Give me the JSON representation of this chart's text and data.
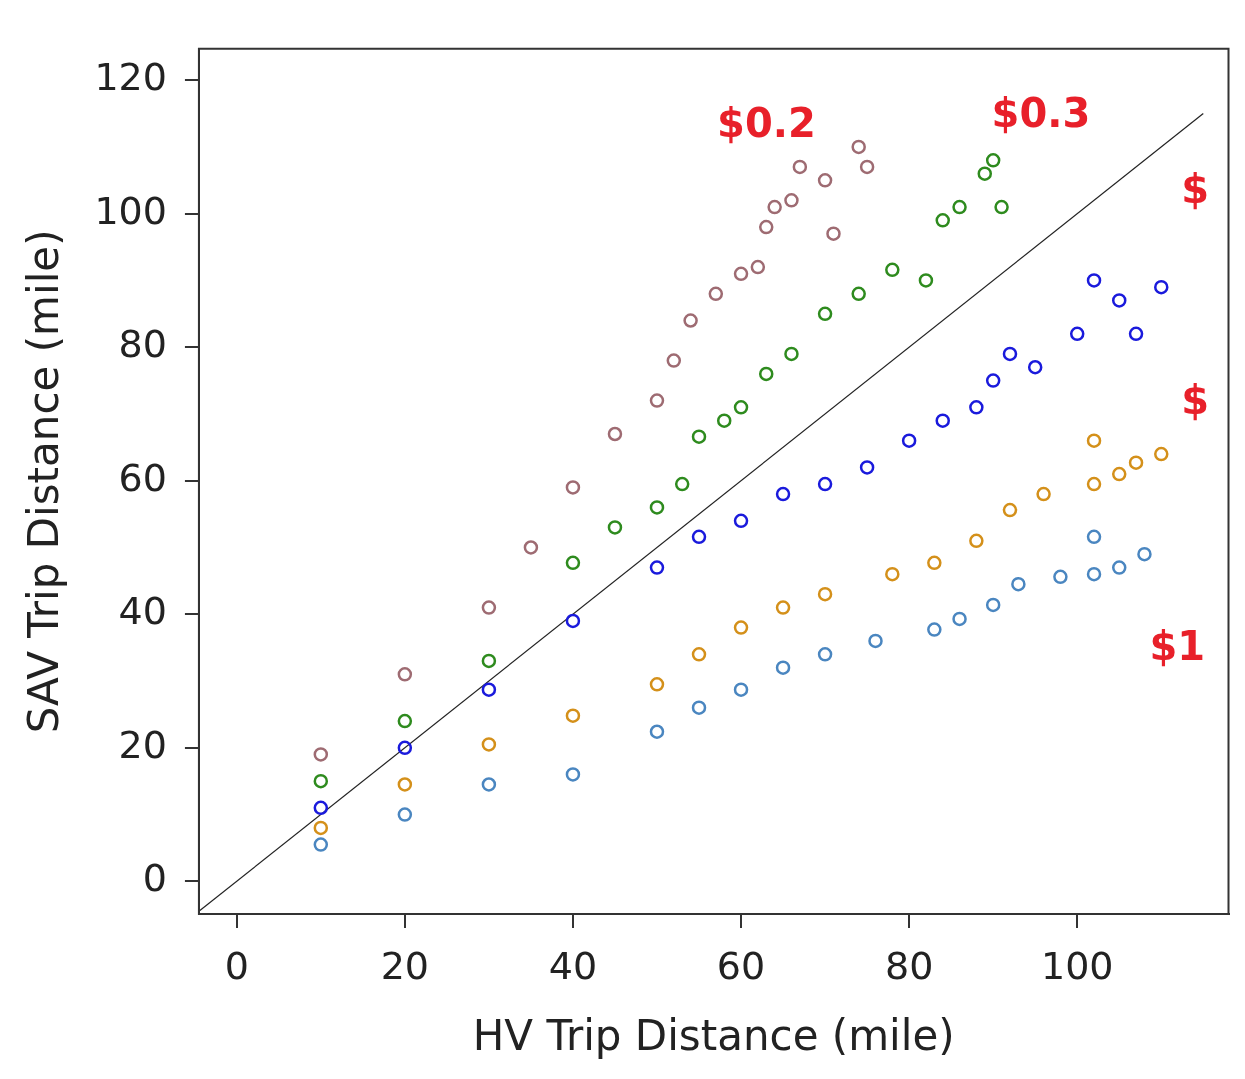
{
  "chart_data": {
    "type": "scatter",
    "xlabel": "HV Trip Distance (mile)",
    "ylabel": "SAV Trip Distance (mile)",
    "xlim": [
      -4.5,
      118
    ],
    "ylim": [
      -4.9,
      124.7
    ],
    "xticks": [
      0,
      20,
      40,
      60,
      80,
      100
    ],
    "yticks": [
      0,
      20,
      40,
      60,
      80,
      100,
      120
    ],
    "grid": false,
    "legend": false,
    "marker": "circle",
    "series": [
      {
        "name": "$0.2",
        "color": "#9e6b72",
        "x": [
          10,
          20,
          30,
          35,
          40,
          45,
          50,
          52,
          54,
          57,
          60,
          62,
          63,
          64,
          66,
          67,
          70,
          71,
          74,
          75
        ],
        "values": [
          19,
          31,
          41,
          50,
          59,
          67,
          72,
          78,
          84,
          88,
          91,
          92,
          98,
          101,
          102,
          107,
          105,
          97,
          110,
          107
        ]
      },
      {
        "name": "$0.3",
        "color": "#2e8b1e",
        "x": [
          10,
          20,
          30,
          40,
          45,
          50,
          53,
          55,
          58,
          60,
          63,
          66,
          70,
          74,
          78,
          82,
          84,
          86,
          89,
          90,
          91
        ],
        "values": [
          15,
          24,
          33,
          47.7,
          53,
          56,
          59.5,
          66.6,
          69,
          71,
          76,
          79,
          85,
          88,
          91.6,
          90,
          99,
          101,
          106,
          108,
          101
        ]
      },
      {
        "name": "$",
        "color": "#1a1adc",
        "x": [
          10,
          20,
          30,
          40,
          50,
          55,
          60,
          65,
          70,
          75,
          80,
          84,
          88,
          90,
          92,
          95,
          100,
          102,
          105,
          107,
          110
        ],
        "values": [
          11,
          20,
          28.7,
          39,
          47,
          51.6,
          54,
          58,
          59.5,
          62,
          66,
          69,
          71,
          75,
          79,
          77,
          82,
          90,
          87,
          82,
          89
        ]
      },
      {
        "name": "$",
        "color": "#d4901a",
        "x": [
          10,
          20,
          30,
          40,
          50,
          55,
          60,
          65,
          70,
          78,
          83,
          88,
          92,
          96,
          102,
          102,
          105,
          107,
          110
        ],
        "values": [
          8,
          14.5,
          20.5,
          24.8,
          29.5,
          34,
          38,
          41,
          43,
          46,
          47.7,
          51,
          55.6,
          58,
          59.5,
          66,
          61,
          62.7,
          64
        ]
      },
      {
        "name": "$1",
        "color": "#4a86c0",
        "x": [
          10,
          20,
          30,
          40,
          50,
          55,
          60,
          65,
          70,
          76,
          83,
          86,
          90,
          93,
          98,
          102,
          102,
          105,
          108
        ],
        "values": [
          5.5,
          10,
          14.5,
          16,
          22.4,
          26,
          28.7,
          32,
          34,
          36,
          37.7,
          39.3,
          41.4,
          44.5,
          45.6,
          51.6,
          46,
          47,
          49
        ]
      },
      {
        "type": "line",
        "marker": "none",
        "color": "#222222",
        "x": [
          -4.5,
          115
        ],
        "values": [
          -4.5,
          115
        ]
      }
    ]
  }
}
